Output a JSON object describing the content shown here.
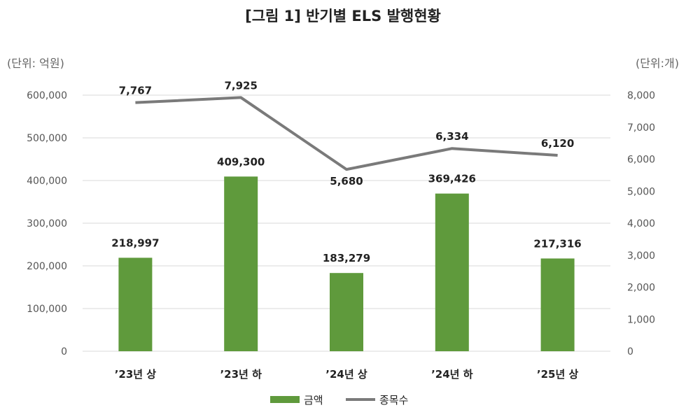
{
  "chart_data": {
    "type": "bar",
    "title": "[그림 1] 반기별 ELS 발행현황",
    "y_left_unit": "(단위: 억원)",
    "y_right_unit": "(단위:개)",
    "categories": [
      "’23년 상",
      "’23년 하",
      "’24년 상",
      "’24년 하",
      "’25년 상"
    ],
    "ylim_left": [
      0,
      600000
    ],
    "ylim_right": [
      0,
      8000
    ],
    "left_ticks": [
      "0",
      "100,000",
      "200,000",
      "300,000",
      "400,000",
      "500,000",
      "600,000"
    ],
    "right_ticks": [
      "0",
      "1,000",
      "2,000",
      "3,000",
      "4,000",
      "5,000",
      "6,000",
      "7,000",
      "8,000"
    ],
    "grid": true,
    "legend_position": "bottom",
    "series": [
      {
        "name": "금액",
        "type": "bar",
        "axis": "left",
        "color": "#5f9a3c",
        "values": [
          218997,
          409300,
          183279,
          369426,
          217316
        ],
        "labels": [
          "218,997",
          "409,300",
          "183,279",
          "369,426",
          "217,316"
        ]
      },
      {
        "name": "종목수",
        "type": "line",
        "axis": "right",
        "color": "#7a7a7a",
        "values": [
          7767,
          7925,
          5680,
          6334,
          6120
        ],
        "labels": [
          "7,767",
          "7,925",
          "5,680",
          "6,334",
          "6,120"
        ]
      }
    ]
  }
}
